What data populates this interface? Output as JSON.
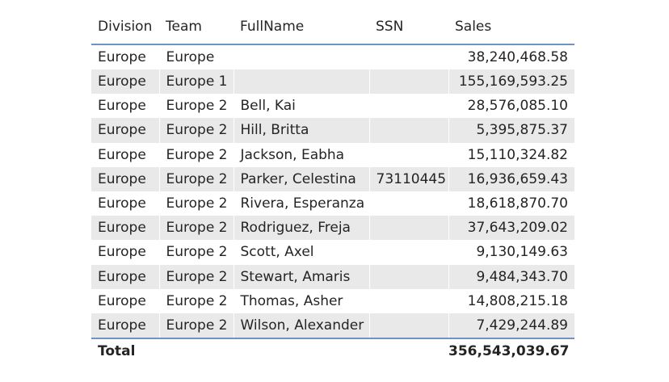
{
  "table": {
    "columns": [
      "Division",
      "Team",
      "FullName",
      "SSN",
      "Sales"
    ],
    "rows": [
      {
        "division": "Europe",
        "team": "Europe",
        "fullname": "",
        "ssn": "",
        "sales": "38,240,468.58"
      },
      {
        "division": "Europe",
        "team": "Europe 1",
        "fullname": "",
        "ssn": "",
        "sales": "155,169,593.25"
      },
      {
        "division": "Europe",
        "team": "Europe 2",
        "fullname": "Bell, Kai",
        "ssn": "",
        "sales": "28,576,085.10"
      },
      {
        "division": "Europe",
        "team": "Europe 2",
        "fullname": "Hill, Britta",
        "ssn": "",
        "sales": "5,395,875.37"
      },
      {
        "division": "Europe",
        "team": "Europe 2",
        "fullname": "Jackson, Eabha",
        "ssn": "",
        "sales": "15,110,324.82"
      },
      {
        "division": "Europe",
        "team": "Europe 2",
        "fullname": "Parker, Celestina",
        "ssn": "73110445",
        "sales": "16,936,659.43"
      },
      {
        "division": "Europe",
        "team": "Europe 2",
        "fullname": "Rivera, Esperanza",
        "ssn": "",
        "sales": "18,618,870.70"
      },
      {
        "division": "Europe",
        "team": "Europe 2",
        "fullname": "Rodriguez, Freja",
        "ssn": "",
        "sales": "37,643,209.02"
      },
      {
        "division": "Europe",
        "team": "Europe 2",
        "fullname": "Scott, Axel",
        "ssn": "",
        "sales": "9,130,149.63"
      },
      {
        "division": "Europe",
        "team": "Europe 2",
        "fullname": "Stewart, Amaris",
        "ssn": "",
        "sales": "9,484,343.70"
      },
      {
        "division": "Europe",
        "team": "Europe 2",
        "fullname": "Thomas, Asher",
        "ssn": "",
        "sales": "14,808,215.18"
      },
      {
        "division": "Europe",
        "team": "Europe 2",
        "fullname": "Wilson, Alexander",
        "ssn": "",
        "sales": "7,429,244.89"
      }
    ],
    "total": {
      "label": "Total",
      "sales": "356,543,039.67"
    }
  },
  "colors": {
    "header_rule": "#6f93c0",
    "alt_row": "#e9e9e9",
    "text": "#252423"
  }
}
